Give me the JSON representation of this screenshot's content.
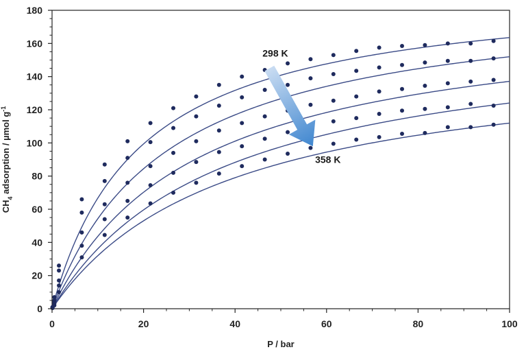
{
  "chart_data": {
    "type": "scatter",
    "xlabel": "P / bar",
    "ylabel": "CH4 adsorption / µmol g-1",
    "ylabel_parts": {
      "main": "CH",
      "sub": "4",
      "rest": " adsorption / µmol g",
      "sup": "-1"
    },
    "xlim": [
      0,
      100
    ],
    "ylim": [
      0,
      180
    ],
    "x_ticks": [
      0,
      20,
      40,
      60,
      80,
      100
    ],
    "y_ticks": [
      0,
      20,
      40,
      60,
      80,
      100,
      120,
      140,
      160,
      180
    ],
    "grid": false,
    "colors": {
      "point": "#1f2b5e",
      "curve": "#3a4a86",
      "arrow_start": "#c9dcf2",
      "arrow_end": "#3f86cf"
    },
    "annotations": [
      {
        "text": "298 K",
        "x": 46,
        "y": 152
      },
      {
        "text": "358 K",
        "x": 57.5,
        "y": 88
      }
    ],
    "arrow": {
      "from": [
        47.5,
        145
      ],
      "to": [
        57,
        98
      ]
    },
    "series": [
      {
        "x": [
          0.1,
          0.5,
          1.5,
          6.5,
          11.5,
          16.5,
          21.5,
          26.5,
          31.5,
          36.5,
          41.5,
          46.5,
          51.5,
          56.5,
          61.5,
          66.5,
          71.5,
          76.5,
          81.5,
          86.5,
          91.5,
          96.5
        ],
        "y": [
          1,
          7,
          26,
          66,
          87,
          101,
          112,
          121,
          128,
          135,
          140,
          144,
          148,
          150.5,
          153,
          155.5,
          157.5,
          158.5,
          159,
          160,
          160,
          161.5
        ],
        "fit": {
          "qmax": 195,
          "K": 0.052
        }
      },
      {
        "x": [
          0.1,
          0.5,
          1.5,
          6.5,
          11.5,
          16.5,
          21.5,
          26.5,
          31.5,
          36.5,
          41.5,
          46.5,
          51.5,
          56.5,
          61.5,
          66.5,
          71.5,
          76.5,
          81.5,
          86.5,
          91.5,
          96.5
        ],
        "y": [
          1,
          5,
          23,
          58,
          77,
          91,
          100.5,
          109,
          116,
          122.5,
          127.5,
          132,
          135,
          139,
          141.5,
          143.5,
          145.5,
          147,
          148.5,
          149.5,
          149.5,
          151
        ],
        "fit": {
          "qmax": 190,
          "K": 0.04
        }
      },
      {
        "x": [
          0.1,
          0.5,
          1.5,
          6.5,
          11.5,
          16.5,
          21.5,
          26.5,
          31.5,
          36.5,
          41.5,
          46.5,
          51.5,
          56.5,
          61.5,
          66.5,
          71.5,
          76.5,
          81.5,
          86.5,
          91.5,
          96.5
        ],
        "y": [
          0.8,
          4,
          17,
          46,
          63,
          76,
          86,
          94,
          101,
          107.5,
          112,
          116,
          119.5,
          123,
          125.5,
          128,
          131,
          132.5,
          134.5,
          136,
          137,
          138
        ],
        "fit": {
          "qmax": 180,
          "K": 0.032
        }
      },
      {
        "x": [
          0.1,
          0.5,
          1.5,
          6.5,
          11.5,
          16.5,
          21.5,
          26.5,
          31.5,
          36.5,
          41.5,
          46.5,
          51.5,
          56.5,
          61.5,
          66.5,
          71.5,
          76.5,
          81.5,
          86.5,
          91.5,
          96.5
        ],
        "y": [
          0.6,
          3,
          14,
          38,
          54,
          65,
          74.5,
          82,
          88.5,
          94.5,
          98,
          102.5,
          106.5,
          109.5,
          113,
          115,
          117.5,
          119.5,
          120.5,
          121.5,
          123.5,
          122.5
        ],
        "fit": {
          "qmax": 170,
          "K": 0.027
        }
      },
      {
        "x": [
          0.1,
          0.5,
          1.5,
          6.5,
          11.5,
          16.5,
          21.5,
          26.5,
          31.5,
          36.5,
          41.5,
          46.5,
          51.5,
          56.5,
          61.5,
          66.5,
          71.5,
          76.5,
          81.5,
          86.5,
          91.5,
          96.5
        ],
        "y": [
          0.4,
          2,
          10,
          31,
          44.5,
          55,
          63.5,
          70,
          76,
          81.5,
          86,
          90,
          93.5,
          97,
          99.5,
          102,
          103.5,
          105.5,
          106,
          109.5,
          109.5,
          111
        ],
        "fit": {
          "qmax": 155,
          "K": 0.026
        }
      }
    ]
  }
}
